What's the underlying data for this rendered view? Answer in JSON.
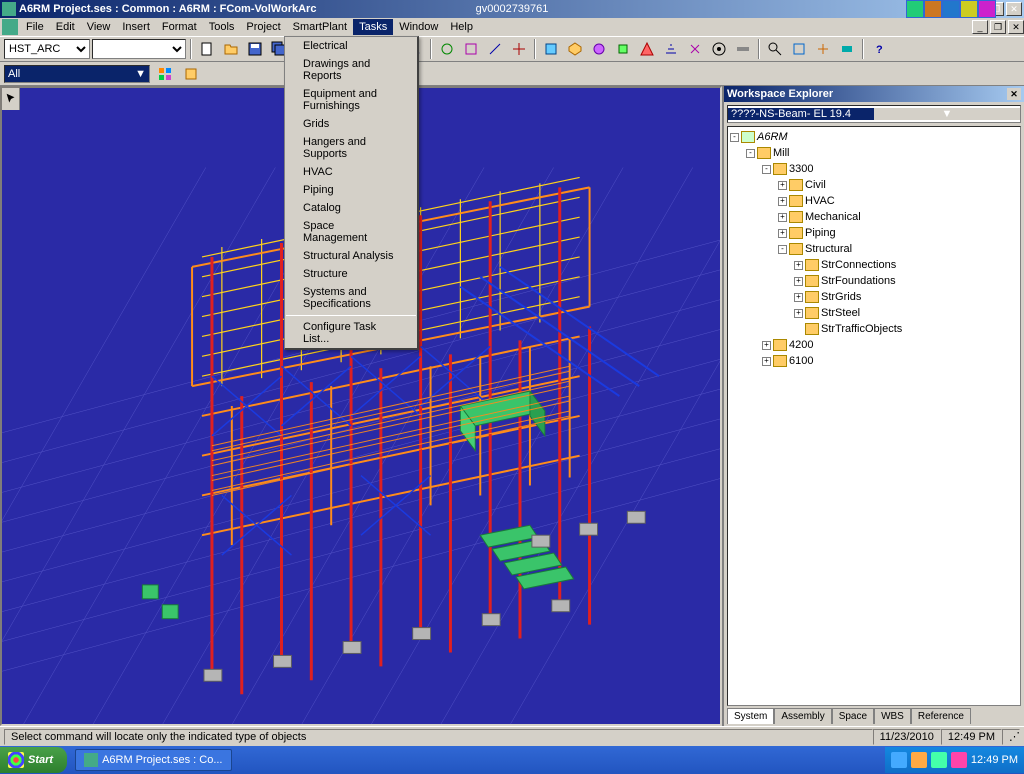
{
  "window": {
    "title": "A6RM Project.ses : Common : A6RM : FCom-VolWorkArc",
    "center_id": "gv0002739761"
  },
  "menubar": [
    "File",
    "Edit",
    "View",
    "Insert",
    "Format",
    "Tools",
    "Project",
    "SmartPlant",
    "Tasks",
    "Window",
    "Help"
  ],
  "toolbar": {
    "view_select": "HST_ARC",
    "second_select": ""
  },
  "filterbar": {
    "filter": "All"
  },
  "tasks_menu": {
    "items": [
      "Electrical",
      "Drawings and Reports",
      "Equipment and Furnishings",
      "Grids",
      "Hangers and Supports",
      "HVAC",
      "Piping",
      "Catalog",
      "Space Management",
      "Structural Analysis",
      "Structure",
      "Systems and Specifications"
    ],
    "footer": "Configure Task List..."
  },
  "explorer": {
    "title": "Workspace Explorer",
    "select": "????-NS-Beam- EL 19.4",
    "tree": [
      {
        "d": 0,
        "exp": "-",
        "label": "A6RM",
        "italic": true,
        "root": true
      },
      {
        "d": 1,
        "exp": "-",
        "label": "Mill"
      },
      {
        "d": 2,
        "exp": "-",
        "label": "3300"
      },
      {
        "d": 3,
        "exp": "+",
        "label": "Civil"
      },
      {
        "d": 3,
        "exp": "+",
        "label": "HVAC"
      },
      {
        "d": 3,
        "exp": "+",
        "label": "Mechanical"
      },
      {
        "d": 3,
        "exp": "+",
        "label": "Piping"
      },
      {
        "d": 3,
        "exp": "-",
        "label": "Structural"
      },
      {
        "d": 4,
        "exp": "+",
        "label": "StrConnections"
      },
      {
        "d": 4,
        "exp": "+",
        "label": "StrFoundations"
      },
      {
        "d": 4,
        "exp": "+",
        "label": "StrGrids"
      },
      {
        "d": 4,
        "exp": "+",
        "label": "StrSteel"
      },
      {
        "d": 4,
        "exp": "",
        "label": "StrTrafficObjects"
      },
      {
        "d": 2,
        "exp": "+",
        "label": "4200"
      },
      {
        "d": 2,
        "exp": "+",
        "label": "6100"
      }
    ],
    "tabs": [
      "System",
      "Assembly",
      "Space",
      "WBS",
      "Reference"
    ],
    "active_tab": 0
  },
  "statusbar": {
    "hint": "Select command will locate only the indicated type of objects",
    "date": "11/23/2010",
    "time": "12:49 PM"
  },
  "taskbar": {
    "start": "Start",
    "task": "A6RM Project.ses : Co...",
    "clock": "12:49 PM"
  },
  "colors": {
    "viewport_bg": "#2a2aa6",
    "grid": "#7a7ae6",
    "beam_orange": "#ff8c1a",
    "beam_yellow": "#ffd21a",
    "column_red": "#e02020",
    "brace_blue": "#1a3ae0",
    "equip_green": "#3ac46a",
    "foundation": "#b5b5b5"
  }
}
